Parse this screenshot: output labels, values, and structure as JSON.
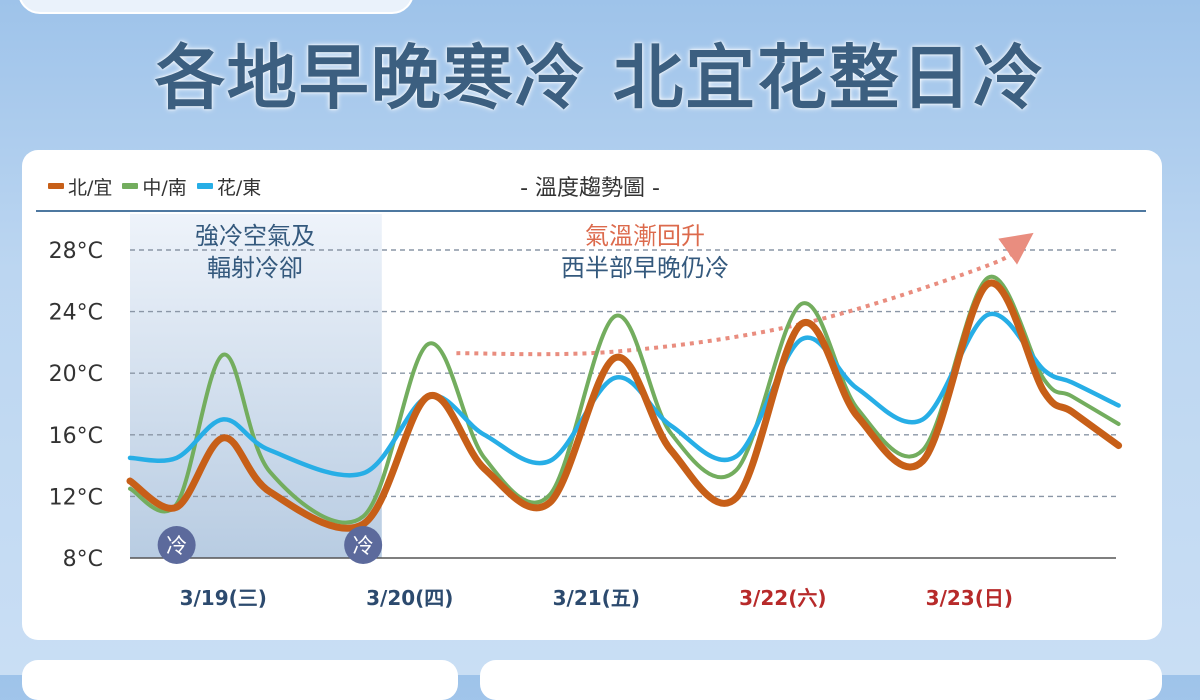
{
  "headline": "各地早晚寒冷 北宜花整日冷",
  "colors": {
    "north_yilan": "#c75f18",
    "central_south": "#73ad5e",
    "hualien_taitung": "#27aee6",
    "title_text": "#3c5f80",
    "weekend_label": "#b72a2a",
    "weekday_label": "#2c4a6e",
    "cold_badge": "#5c6a9c",
    "trend_arrow": "#e98d7f"
  },
  "chart_data": {
    "type": "line",
    "title": "- 溫度趨勢圖 -",
    "xlabel": "",
    "ylabel": "",
    "ylim": [
      8,
      30
    ],
    "yticks": [
      8,
      12,
      16,
      20,
      24,
      28
    ],
    "ytick_labels": [
      "8°C",
      "12°C",
      "16°C",
      "20°C",
      "24°C",
      "28°C"
    ],
    "xlim": [
      0,
      10
    ],
    "grid": true,
    "legend_position": "top-left",
    "categories": [
      "3/19(三)",
      "3/20(四)",
      "3/21(五)",
      "3/22(六)",
      "3/23(日)"
    ],
    "category_centers": [
      1,
      3,
      5,
      7,
      9
    ],
    "weekend_categories": [
      "3/22(六)",
      "3/23(日)"
    ],
    "series": [
      {
        "name": "北/宜",
        "color": "#c75f18",
        "points": [
          [
            0,
            13
          ],
          [
            0.5,
            11.3
          ],
          [
            1,
            15.8
          ],
          [
            1.5,
            12.3
          ],
          [
            2.5,
            10.2
          ],
          [
            3.2,
            18.5
          ],
          [
            3.8,
            13.8
          ],
          [
            4.5,
            11.6
          ],
          [
            5.2,
            21
          ],
          [
            5.8,
            15
          ],
          [
            6.5,
            11.9
          ],
          [
            7.2,
            23.2
          ],
          [
            7.8,
            17.2
          ],
          [
            8.5,
            14.3
          ],
          [
            9.2,
            25.8
          ],
          [
            9.8,
            18.8
          ],
          [
            10.1,
            17.5
          ],
          [
            10.6,
            15.3
          ]
        ]
      },
      {
        "name": "中/南",
        "color": "#73ad5e",
        "points": [
          [
            0,
            12.5
          ],
          [
            0.5,
            11.5
          ],
          [
            1,
            21.2
          ],
          [
            1.5,
            13.6
          ],
          [
            2.5,
            10.7
          ],
          [
            3.2,
            21.9
          ],
          [
            3.8,
            14.5
          ],
          [
            4.5,
            12.1
          ],
          [
            5.2,
            23.7
          ],
          [
            5.8,
            16.1
          ],
          [
            6.5,
            13.7
          ],
          [
            7.2,
            24.5
          ],
          [
            7.8,
            17.7
          ],
          [
            8.5,
            15
          ],
          [
            9.2,
            26.2
          ],
          [
            9.8,
            19.6
          ],
          [
            10.1,
            18.5
          ],
          [
            10.6,
            16.7
          ]
        ]
      },
      {
        "name": "花/東",
        "color": "#27aee6",
        "points": [
          [
            0,
            14.5
          ],
          [
            0.5,
            14.5
          ],
          [
            1,
            17
          ],
          [
            1.5,
            15
          ],
          [
            2.5,
            13.5
          ],
          [
            3.2,
            18.5
          ],
          [
            3.8,
            16
          ],
          [
            4.5,
            14.3
          ],
          [
            5.2,
            19.7
          ],
          [
            5.8,
            16.6
          ],
          [
            6.5,
            14.6
          ],
          [
            7.2,
            22.2
          ],
          [
            7.8,
            19
          ],
          [
            8.5,
            17
          ],
          [
            9.2,
            23.8
          ],
          [
            9.8,
            20.2
          ],
          [
            10.1,
            19.4
          ],
          [
            10.6,
            17.9
          ]
        ]
      }
    ],
    "shaded_band": [
      0,
      2.7
    ],
    "annotations": [
      {
        "lines": [
          "強冷空氣及",
          "輻射冷卻"
        ],
        "color": "#34597d"
      },
      {
        "lines": [
          "氣溫漸回升"
        ],
        "color": "#dc6a4c"
      },
      {
        "lines": [
          "西半部早晚仍冷"
        ],
        "color": "#34597d"
      }
    ],
    "cold_badges": [
      {
        "label": "冷",
        "x": 0.5
      },
      {
        "label": "冷",
        "x": 2.5
      }
    ],
    "trend_arrow": [
      [
        3.5,
        21.3
      ],
      [
        5.2,
        21.4
      ],
      [
        7.2,
        23.2
      ],
      [
        9.2,
        27
      ],
      [
        9.55,
        28.5
      ]
    ]
  }
}
